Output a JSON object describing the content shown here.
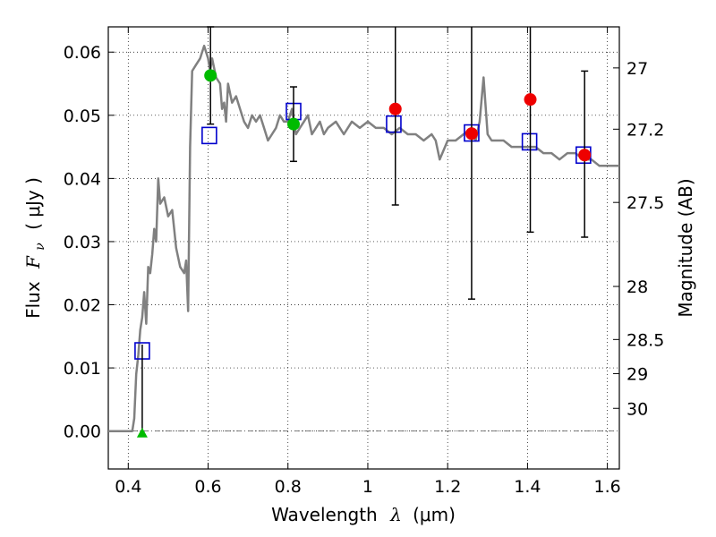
{
  "chart_data": {
    "type": "scatter",
    "xlabel_prefix": "Wavelength",
    "xlabel_symbol": "λ",
    "xlabel_unit": "(μm)",
    "ylabel_left_prefix": "Flux",
    "ylabel_left_symbol": "F",
    "ylabel_left_subscript": "ν",
    "ylabel_left_unit": "( μJy )",
    "ylabel_right": "Magnitude (AB)",
    "xlim": [
      0.35,
      1.63
    ],
    "ylim": [
      -0.006,
      0.064
    ],
    "x_ticks": [
      0.4,
      0.6,
      0.8,
      1.0,
      1.2,
      1.4,
      1.6
    ],
    "x_tick_labels": [
      "0.4",
      "0.6",
      "0.8",
      "1",
      "1.2",
      "1.4",
      "1.6"
    ],
    "y_ticks": [
      0.0,
      0.01,
      0.02,
      0.03,
      0.04,
      0.05,
      0.06
    ],
    "y_tick_labels": [
      "0.00",
      "0.01",
      "0.02",
      "0.03",
      "0.04",
      "0.05",
      "0.06"
    ],
    "right_axis_ticks": [
      {
        "label": "27",
        "flux": 0.0575
      },
      {
        "label": "27.2",
        "flux": 0.0478
      },
      {
        "label": "27.5",
        "flux": 0.0362
      },
      {
        "label": "28",
        "flux": 0.0229
      },
      {
        "label": "28.5",
        "flux": 0.0145
      },
      {
        "label": "29",
        "flux": 0.0091
      },
      {
        "label": "30",
        "flux": 0.0036
      }
    ],
    "grid": true,
    "colors": {
      "model": "#808080",
      "model_photometry": "#0000cc",
      "observed_low": "#00bb00",
      "observed_high": "#ee0000",
      "upper_limit": "#00bb00",
      "errorbar": "#000000",
      "zero_line": "#555555"
    },
    "series": [
      {
        "name": "model spectrum",
        "kind": "line",
        "x": [
          0.35,
          0.4,
          0.41,
          0.415,
          0.42,
          0.425,
          0.43,
          0.435,
          0.44,
          0.445,
          0.45,
          0.455,
          0.46,
          0.465,
          0.47,
          0.475,
          0.48,
          0.49,
          0.5,
          0.51,
          0.52,
          0.53,
          0.54,
          0.545,
          0.55,
          0.555,
          0.56,
          0.57,
          0.58,
          0.59,
          0.6,
          0.605,
          0.61,
          0.62,
          0.63,
          0.635,
          0.64,
          0.645,
          0.65,
          0.66,
          0.67,
          0.68,
          0.69,
          0.7,
          0.71,
          0.72,
          0.73,
          0.74,
          0.75,
          0.76,
          0.77,
          0.78,
          0.79,
          0.8,
          0.81,
          0.82,
          0.83,
          0.84,
          0.85,
          0.86,
          0.87,
          0.88,
          0.89,
          0.9,
          0.92,
          0.94,
          0.96,
          0.98,
          1.0,
          1.02,
          1.04,
          1.06,
          1.08,
          1.1,
          1.12,
          1.14,
          1.16,
          1.17,
          1.18,
          1.2,
          1.22,
          1.24,
          1.26,
          1.27,
          1.28,
          1.29,
          1.3,
          1.31,
          1.32,
          1.34,
          1.36,
          1.38,
          1.4,
          1.42,
          1.44,
          1.46,
          1.48,
          1.5,
          1.52,
          1.54,
          1.56,
          1.58,
          1.6,
          1.63
        ],
        "y": [
          0.0,
          0.0,
          0.0,
          0.002,
          0.009,
          0.012,
          0.016,
          0.018,
          0.022,
          0.017,
          0.026,
          0.025,
          0.028,
          0.032,
          0.03,
          0.04,
          0.036,
          0.037,
          0.034,
          0.035,
          0.029,
          0.026,
          0.025,
          0.027,
          0.019,
          0.045,
          0.057,
          0.058,
          0.059,
          0.061,
          0.059,
          0.057,
          0.059,
          0.056,
          0.055,
          0.051,
          0.052,
          0.049,
          0.055,
          0.052,
          0.053,
          0.051,
          0.049,
          0.048,
          0.05,
          0.049,
          0.05,
          0.048,
          0.046,
          0.047,
          0.048,
          0.05,
          0.049,
          0.049,
          0.051,
          0.047,
          0.048,
          0.049,
          0.05,
          0.047,
          0.048,
          0.049,
          0.047,
          0.048,
          0.049,
          0.047,
          0.049,
          0.048,
          0.049,
          0.048,
          0.048,
          0.047,
          0.048,
          0.047,
          0.047,
          0.046,
          0.047,
          0.046,
          0.043,
          0.046,
          0.046,
          0.047,
          0.048,
          0.046,
          0.049,
          0.056,
          0.047,
          0.046,
          0.046,
          0.046,
          0.045,
          0.045,
          0.045,
          0.045,
          0.044,
          0.044,
          0.043,
          0.044,
          0.044,
          0.043,
          0.043,
          0.042,
          0.042,
          0.042
        ]
      },
      {
        "name": "model photometry",
        "kind": "open-square",
        "x": [
          0.435,
          0.603,
          0.814,
          1.065,
          1.26,
          1.405,
          1.54
        ],
        "y": [
          0.0127,
          0.0468,
          0.0506,
          0.0486,
          0.0472,
          0.0458,
          0.0437
        ]
      },
      {
        "name": "observed flux",
        "kind": "filled-circle",
        "x": [
          0.606,
          0.814,
          1.069,
          1.26,
          1.407,
          1.543
        ],
        "y": [
          0.0563,
          0.0486,
          0.051,
          0.0471,
          0.0525,
          0.0437
        ],
        "yerr_low": [
          0.0077,
          0.0059,
          0.0152,
          0.0262,
          0.021,
          0.013
        ],
        "yerr_high": [
          0.0077,
          0.0059,
          0.0152,
          0.0262,
          0.021,
          0.0133
        ],
        "color_keys": [
          "observed_low",
          "observed_low",
          "observed_high",
          "observed_high",
          "observed_high",
          "observed_high"
        ]
      },
      {
        "name": "upper limit",
        "kind": "triangle",
        "x": [
          0.435
        ],
        "y": [
          -0.0003
        ],
        "yerr_low": [
          0.0
        ],
        "yerr_high": [
          0.014
        ]
      }
    ]
  }
}
